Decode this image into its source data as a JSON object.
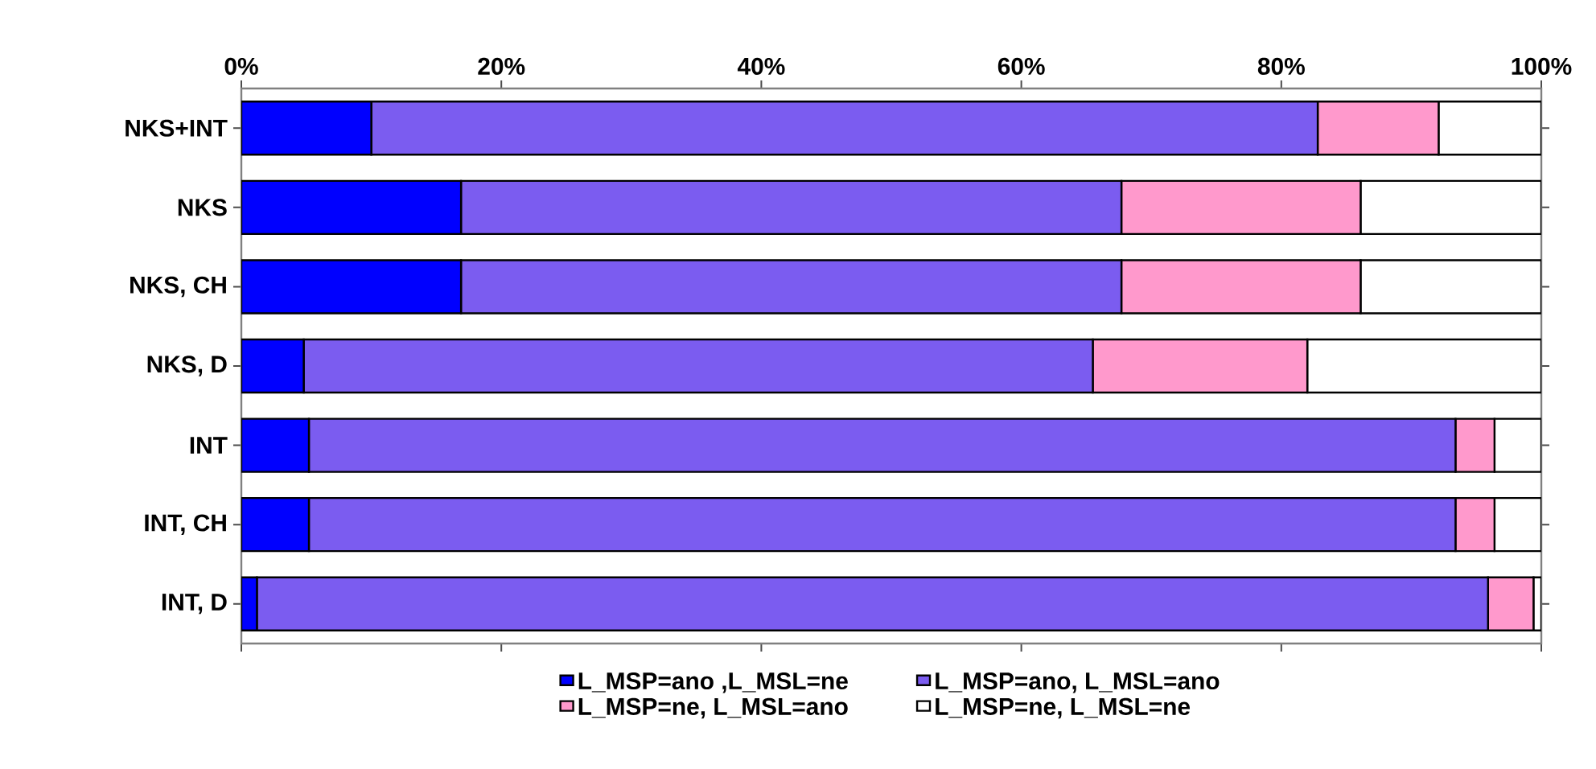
{
  "chart_data": {
    "type": "bar",
    "orientation": "horizontal",
    "stacked": true,
    "legend": "bottom",
    "categories": [
      "NKS+INT",
      "NKS",
      "NKS, CH",
      "NKS, D",
      "INT",
      "INT, CH",
      "INT, D"
    ],
    "xlim": [
      0,
      100
    ],
    "xticks": [
      {
        "value": 0,
        "label": "0%"
      },
      {
        "value": 20,
        "label": "20%"
      },
      {
        "value": 40,
        "label": "40%"
      },
      {
        "value": 60,
        "label": "60%"
      },
      {
        "value": 80,
        "label": "80%"
      },
      {
        "value": 100,
        "label": "100%"
      }
    ],
    "series": [
      {
        "name": "L_MSP=ano ,L_MSL=ne",
        "color": "#0000ff",
        "values": [
          10.0,
          16.9,
          16.9,
          4.8,
          5.2,
          5.2,
          1.2
        ]
      },
      {
        "name": "L_MSP=ano, L_MSL=ano",
        "color": "#7b5cf0",
        "values": [
          72.8,
          50.8,
          50.8,
          60.7,
          88.2,
          88.2,
          94.7
        ]
      },
      {
        "name": "L_MSP=ne, L_MSL=ano",
        "color": "#ff99cc",
        "values": [
          9.3,
          18.4,
          18.4,
          16.5,
          3.0,
          3.0,
          3.5
        ]
      },
      {
        "name": "L_MSP=ne, L_MSL=ne",
        "color": "#ffffff",
        "values": [
          7.9,
          13.9,
          13.9,
          18.0,
          3.6,
          3.6,
          0.6
        ]
      }
    ]
  }
}
